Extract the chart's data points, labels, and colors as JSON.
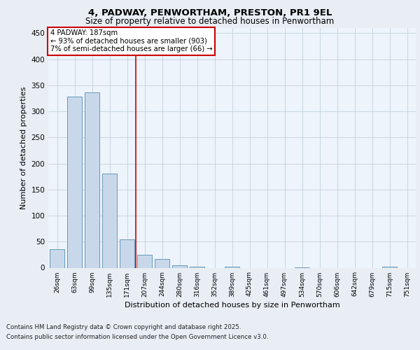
{
  "title1": "4, PADWAY, PENWORTHAM, PRESTON, PR1 9EL",
  "title2": "Size of property relative to detached houses in Penwortham",
  "xlabel": "Distribution of detached houses by size in Penwortham",
  "ylabel": "Number of detached properties",
  "categories": [
    "26sqm",
    "63sqm",
    "99sqm",
    "135sqm",
    "171sqm",
    "207sqm",
    "244sqm",
    "280sqm",
    "316sqm",
    "352sqm",
    "389sqm",
    "425sqm",
    "461sqm",
    "497sqm",
    "534sqm",
    "570sqm",
    "606sqm",
    "642sqm",
    "679sqm",
    "715sqm",
    "751sqm"
  ],
  "values": [
    35,
    328,
    337,
    180,
    54,
    25,
    17,
    5,
    2,
    0,
    2,
    0,
    0,
    0,
    1,
    0,
    0,
    0,
    0,
    2,
    0
  ],
  "bar_color": "#c8d8ea",
  "bar_edge_color": "#6699bb",
  "bar_edge_width": 0.7,
  "vline_x": 4.5,
  "vline_color": "#cc0000",
  "annotation_line1": "4 PADWAY: 187sqm",
  "annotation_line2": "← 93% of detached houses are smaller (903)",
  "annotation_line3": "7% of semi-detached houses are larger (66) →",
  "annotation_box_color": "#cc0000",
  "ylim": [
    0,
    460
  ],
  "yticks": [
    0,
    50,
    100,
    150,
    200,
    250,
    300,
    350,
    400,
    450
  ],
  "footnote1": "Contains HM Land Registry data © Crown copyright and database right 2025.",
  "footnote2": "Contains public sector information licensed under the Open Government Licence v3.0.",
  "bg_color": "#e8eef4",
  "plot_bg_color": "#eef4fb"
}
